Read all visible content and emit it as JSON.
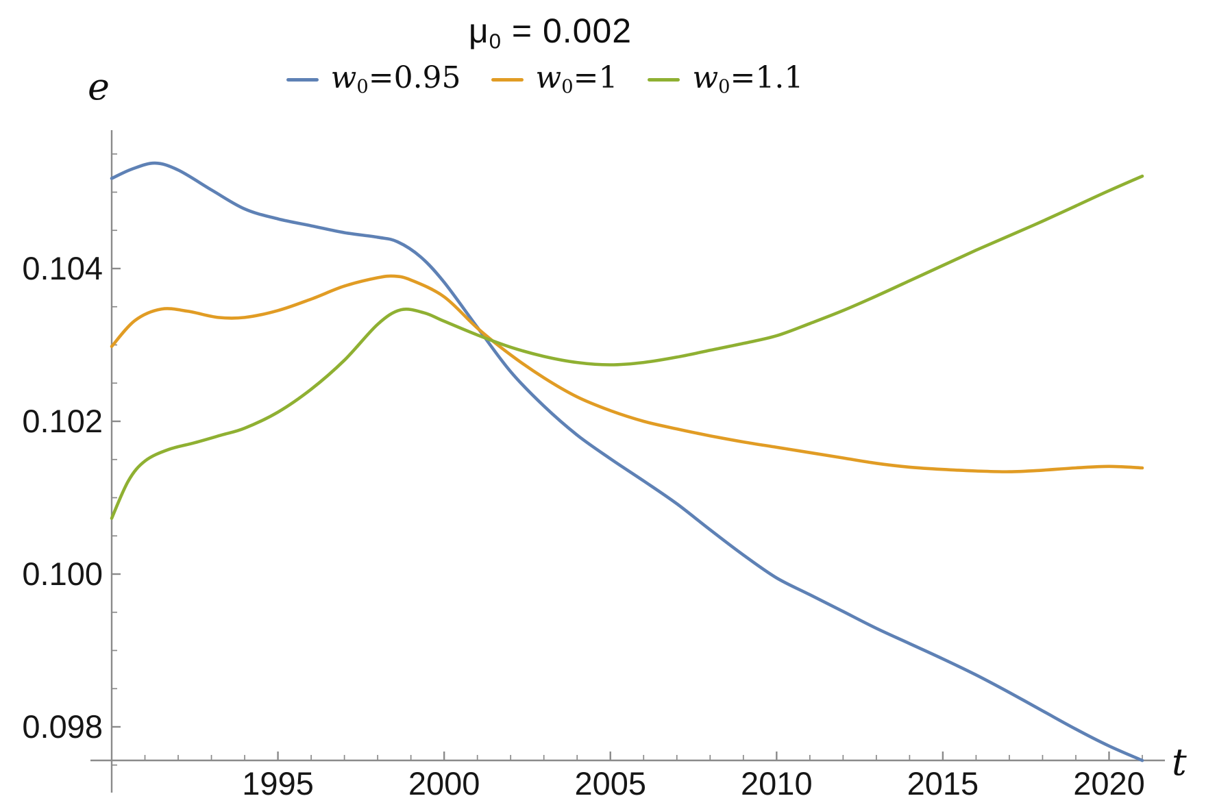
{
  "title": {
    "symbol": "μ",
    "subscript": "0",
    "rest": " = 0.002"
  },
  "axis_labels": {
    "y": "e",
    "x": "t"
  },
  "legend": [
    {
      "symbol": "w",
      "subscript": "0",
      "value": "=0.95",
      "color": "#5E81B5"
    },
    {
      "symbol": "w",
      "subscript": "0",
      "value": "=1",
      "color": "#E19C24"
    },
    {
      "symbol": "w",
      "subscript": "0",
      "value": "=1.1",
      "color": "#8FB032"
    }
  ],
  "colors": {
    "axis": "#8a8a8a",
    "tick_label": "#161616",
    "background": "#ffffff"
  },
  "chart_data": {
    "type": "line",
    "title": "μ₀ = 0.002",
    "xlabel": "t",
    "ylabel": "e",
    "xlim": [
      1990,
      2021.7
    ],
    "ylim": [
      0.0972,
      0.1058
    ],
    "grid": false,
    "legend_position": "top-center",
    "x_ticks": {
      "major": [
        1995,
        2000,
        2005,
        2010,
        2015,
        2020
      ],
      "labels": [
        "1995",
        "2000",
        "2005",
        "2010",
        "2015",
        "2020"
      ],
      "minor_step_years": 1
    },
    "y_ticks": {
      "major": [
        0.104,
        0.102,
        0.1,
        0.098
      ],
      "labels": [
        "0.104",
        "0.102",
        "0.100",
        "0.098"
      ],
      "minor_step": 0.0005
    },
    "series": [
      {
        "name": "w0=0.95",
        "color": "#5E81B5",
        "points": [
          [
            1990,
            0.10518
          ],
          [
            1990.6,
            0.1053
          ],
          [
            1991.3,
            0.10538
          ],
          [
            1992,
            0.10529
          ],
          [
            1993,
            0.10503
          ],
          [
            1994,
            0.10478
          ],
          [
            1995,
            0.10465
          ],
          [
            1996,
            0.10456
          ],
          [
            1997,
            0.10447
          ],
          [
            1998,
            0.10441
          ],
          [
            1998.6,
            0.10435
          ],
          [
            1999.3,
            0.10415
          ],
          [
            2000,
            0.10382
          ],
          [
            2001,
            0.10323
          ],
          [
            2002,
            0.10265
          ],
          [
            2003,
            0.1022
          ],
          [
            2004,
            0.10182
          ],
          [
            2005,
            0.10151
          ],
          [
            2006,
            0.10122
          ],
          [
            2007,
            0.10092
          ],
          [
            2008,
            0.10058
          ],
          [
            2009,
            0.10025
          ],
          [
            2010,
            0.09995
          ],
          [
            2011,
            0.09973
          ],
          [
            2012,
            0.09951
          ],
          [
            2013,
            0.09929
          ],
          [
            2014,
            0.09909
          ],
          [
            2015,
            0.09889
          ],
          [
            2016,
            0.09868
          ],
          [
            2017,
            0.09845
          ],
          [
            2018,
            0.09821
          ],
          [
            2019,
            0.09797
          ],
          [
            2020,
            0.09775
          ],
          [
            2021,
            0.09756
          ]
        ]
      },
      {
        "name": "w0=1",
        "color": "#E19C24",
        "points": [
          [
            1990,
            0.10298
          ],
          [
            1990.7,
            0.10332
          ],
          [
            1991.5,
            0.10347
          ],
          [
            1992.3,
            0.10344
          ],
          [
            1993.2,
            0.10336
          ],
          [
            1994,
            0.10336
          ],
          [
            1995,
            0.10345
          ],
          [
            1996,
            0.1036
          ],
          [
            1997,
            0.10377
          ],
          [
            1998,
            0.10388
          ],
          [
            1998.5,
            0.1039
          ],
          [
            1999,
            0.10385
          ],
          [
            2000,
            0.10363
          ],
          [
            2001,
            0.10322
          ],
          [
            2002,
            0.10287
          ],
          [
            2003,
            0.10257
          ],
          [
            2004,
            0.10232
          ],
          [
            2005,
            0.10214
          ],
          [
            2006,
            0.102
          ],
          [
            2007,
            0.1019
          ],
          [
            2008,
            0.10181
          ],
          [
            2009,
            0.10173
          ],
          [
            2010,
            0.10166
          ],
          [
            2011,
            0.10159
          ],
          [
            2012,
            0.10152
          ],
          [
            2013,
            0.10145
          ],
          [
            2014,
            0.1014
          ],
          [
            2015,
            0.10137
          ],
          [
            2016,
            0.10135
          ],
          [
            2017,
            0.10134
          ],
          [
            2018,
            0.10136
          ],
          [
            2019,
            0.10139
          ],
          [
            2020,
            0.10141
          ],
          [
            2021,
            0.10139
          ]
        ]
      },
      {
        "name": "w0=1.1",
        "color": "#8FB032",
        "points": [
          [
            1990,
            0.10073
          ],
          [
            1990.5,
            0.10122
          ],
          [
            1991,
            0.10148
          ],
          [
            1991.7,
            0.10163
          ],
          [
            1992.5,
            0.10172
          ],
          [
            1993.3,
            0.10182
          ],
          [
            1994,
            0.10191
          ],
          [
            1995,
            0.10212
          ],
          [
            1996,
            0.10242
          ],
          [
            1997,
            0.1028
          ],
          [
            1998,
            0.10327
          ],
          [
            1998.7,
            0.10346
          ],
          [
            1999.4,
            0.10342
          ],
          [
            2000,
            0.10331
          ],
          [
            2001,
            0.10313
          ],
          [
            2002,
            0.10297
          ],
          [
            2003,
            0.10285
          ],
          [
            2004,
            0.10277
          ],
          [
            2005,
            0.10274
          ],
          [
            2006,
            0.10277
          ],
          [
            2007,
            0.10284
          ],
          [
            2008,
            0.10293
          ],
          [
            2009,
            0.10302
          ],
          [
            2010,
            0.10312
          ],
          [
            2011,
            0.10328
          ],
          [
            2012,
            0.10345
          ],
          [
            2013,
            0.10364
          ],
          [
            2014,
            0.10384
          ],
          [
            2015,
            0.10404
          ],
          [
            2016,
            0.10424
          ],
          [
            2017,
            0.10443
          ],
          [
            2018,
            0.10462
          ],
          [
            2019,
            0.10482
          ],
          [
            2020,
            0.10502
          ],
          [
            2021,
            0.10521
          ]
        ]
      }
    ]
  }
}
